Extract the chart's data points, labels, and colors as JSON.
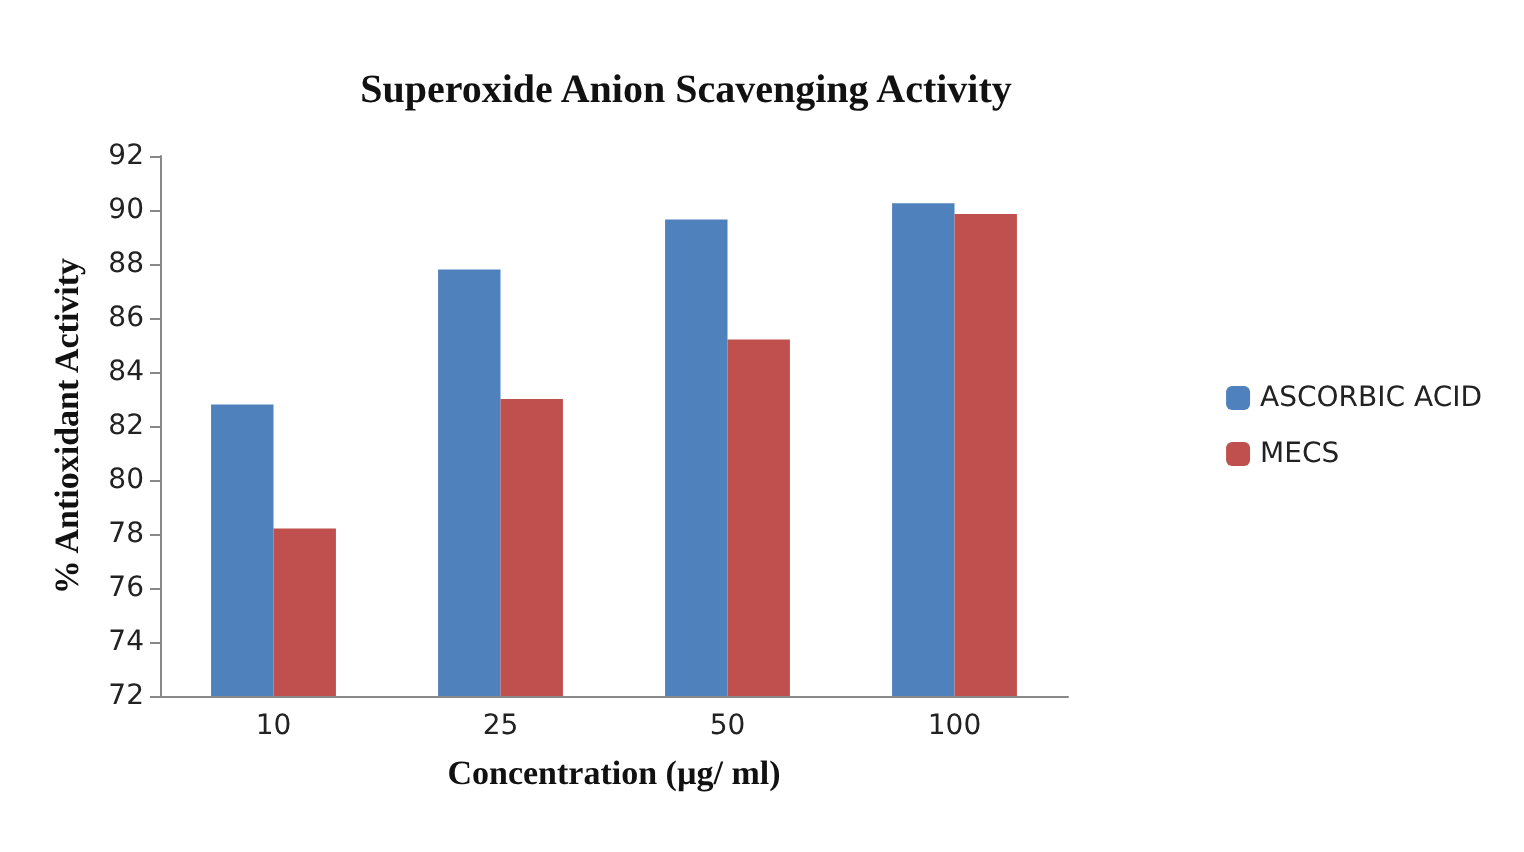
{
  "chart_data": {
    "type": "bar",
    "title": "Superoxide Anion Scavenging Activity",
    "xlabel": "Concentration (µg/ ml)",
    "ylabel": "% Antioxidant Activity",
    "categories": [
      "10",
      "25",
      "50",
      "100"
    ],
    "series": [
      {
        "name": "ASCORBIC ACID",
        "color": "#4f81bd",
        "values": [
          82.8,
          87.8,
          89.65,
          90.25
        ]
      },
      {
        "name": "MECS",
        "color": "#c0504d",
        "values": [
          78.2,
          83.0,
          85.2,
          89.85
        ]
      }
    ],
    "ylim": [
      72,
      92
    ],
    "yticks": [
      72,
      74,
      76,
      78,
      80,
      82,
      84,
      86,
      88,
      90,
      92
    ],
    "grid": false,
    "legend": "right"
  }
}
